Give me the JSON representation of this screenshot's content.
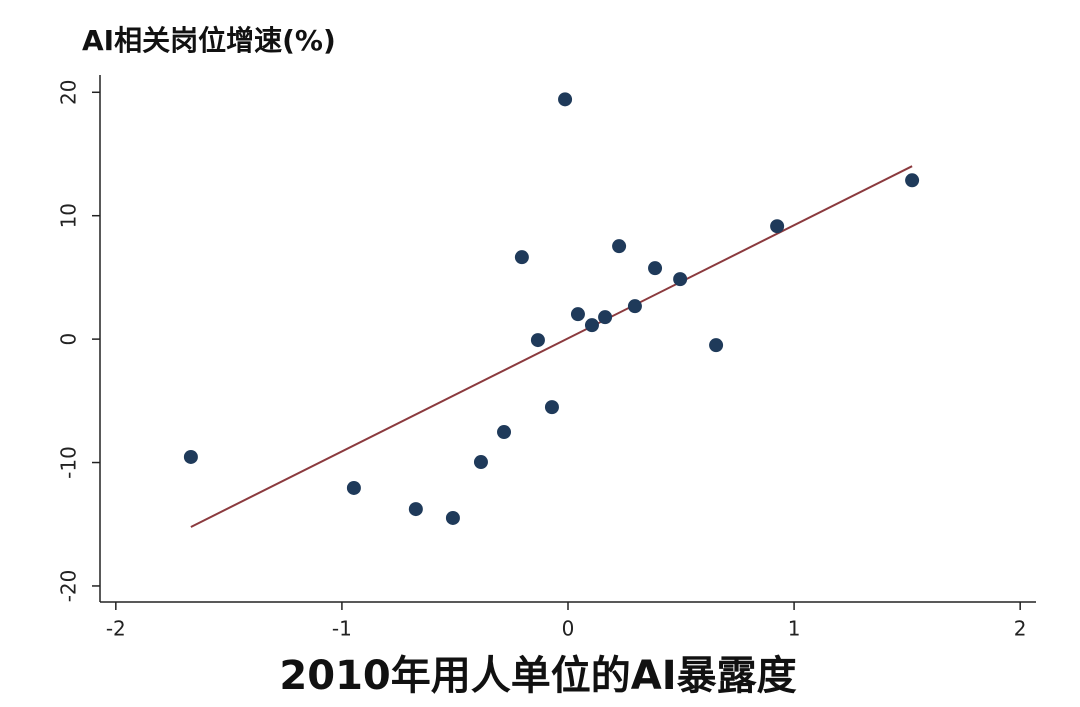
{
  "chart_data": {
    "type": "scatter",
    "title": "AI相关岗位增速(%)",
    "x_label": "2010年用人单位的AI暴露度",
    "x": [
      -1.668,
      -0.947,
      -0.673,
      -0.509,
      -0.385,
      -0.283,
      -0.204,
      -0.133,
      -0.071,
      -0.013,
      0.044,
      0.106,
      0.164,
      0.226,
      0.296,
      0.385,
      0.496,
      0.655,
      0.925,
      1.522
    ],
    "values": [
      -9.55,
      -12.06,
      -13.77,
      -14.49,
      -9.96,
      -7.53,
      6.64,
      -0.08,
      -5.51,
      19.43,
      2.02,
      1.13,
      1.78,
      7.53,
      2.67,
      5.75,
      4.86,
      -0.49,
      9.15,
      12.87
    ],
    "color": "#1f3a5a",
    "fit_line": {
      "x": [
        -1.668,
        1.522
      ],
      "y": [
        -15.22,
        14.01
      ],
      "color": "#8b3a3e"
    },
    "xlim": [
      -2.07,
      2.07
    ],
    "xticks": [
      -2,
      -1,
      0,
      1,
      2
    ],
    "ylim": [
      -21.3,
      21.4
    ],
    "yticks": [
      -20,
      -10,
      0,
      10,
      20
    ],
    "grid": false
  }
}
